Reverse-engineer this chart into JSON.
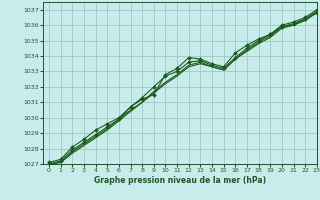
{
  "xlabel": "Graphe pression niveau de la mer (hPa)",
  "xlim": [
    -0.5,
    23
  ],
  "ylim": [
    1027,
    1037.5
  ],
  "yticks": [
    1027,
    1028,
    1029,
    1030,
    1031,
    1032,
    1033,
    1034,
    1035,
    1036,
    1037
  ],
  "xticks": [
    0,
    1,
    2,
    3,
    4,
    5,
    6,
    7,
    8,
    9,
    10,
    11,
    12,
    13,
    14,
    15,
    16,
    17,
    18,
    19,
    20,
    21,
    22,
    23
  ],
  "bg_color": "#c8ecec",
  "grid_color": "#99ccbb",
  "line_color": "#1a5c1a",
  "series_with_markers": [
    [
      1027.1,
      1027.3,
      1028.1,
      1028.6,
      1029.2,
      1029.6,
      1030.0,
      1030.7,
      1031.2,
      1031.5,
      1032.8,
      1033.2,
      1033.9,
      1033.8,
      1033.5,
      1033.3,
      1034.2,
      1034.7,
      1035.1,
      1035.4,
      1036.0,
      1036.2,
      1036.5,
      1037.0
    ],
    [
      1027.0,
      1027.2,
      1027.9,
      1028.4,
      1028.9,
      1029.4,
      1029.9,
      1030.7,
      1031.3,
      1032.0,
      1032.7,
      1033.0,
      1033.6,
      1033.7,
      1033.4,
      1033.2,
      1033.9,
      1034.5,
      1035.0,
      1035.4,
      1035.9,
      1036.1,
      1036.4,
      1036.8
    ]
  ],
  "series_plain": [
    [
      1027.0,
      1027.1,
      1027.8,
      1028.3,
      1028.8,
      1029.3,
      1029.9,
      1030.5,
      1031.0,
      1031.7,
      1032.3,
      1032.8,
      1033.4,
      1033.6,
      1033.3,
      1033.1,
      1033.8,
      1034.4,
      1034.9,
      1035.3,
      1035.9,
      1036.0,
      1036.4,
      1036.9
    ],
    [
      1027.0,
      1027.1,
      1027.7,
      1028.2,
      1028.7,
      1029.2,
      1029.8,
      1030.4,
      1031.0,
      1031.6,
      1032.2,
      1032.7,
      1033.3,
      1033.5,
      1033.3,
      1033.1,
      1033.8,
      1034.3,
      1034.8,
      1035.2,
      1035.8,
      1036.0,
      1036.3,
      1036.8
    ]
  ],
  "marker": "D",
  "marker_size": 2.0,
  "linewidth": 0.8
}
